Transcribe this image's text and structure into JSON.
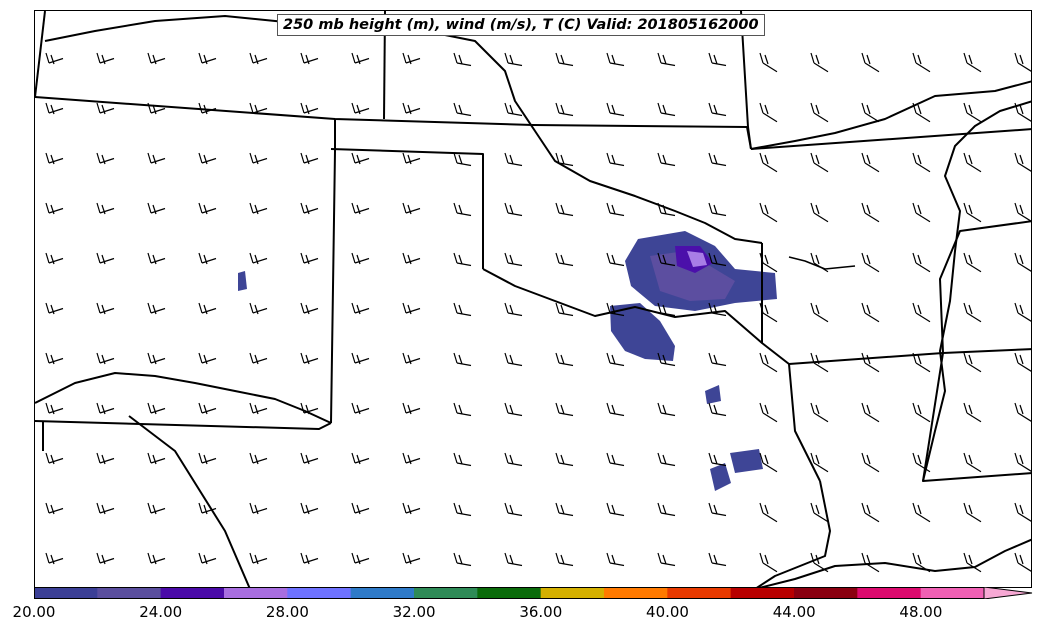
{
  "title": "250 mb height (m), wind (m/s), T (C) Valid: 201805162000",
  "colorbar": {
    "colors": [
      "#3b3f96",
      "#5a4e9e",
      "#4a0aa8",
      "#a86ee0",
      "#6e72ff",
      "#2e7ac8",
      "#2e8b57",
      "#0a6b0a",
      "#d4b000",
      "#ff7a00",
      "#e83a00",
      "#b80000",
      "#8a0010",
      "#dc0a6e",
      "#f060b4"
    ],
    "extend_color": "#f7a8d4",
    "tick_labels": [
      "20.00",
      "24.00",
      "28.00",
      "32.00",
      "36.00",
      "40.00",
      "44.00",
      "48.00"
    ]
  },
  "colors": {
    "boundary": "#000000",
    "shade_light": "#3e4596",
    "shade_mid": "#5c4ea0",
    "shade_dark": "#4b10aa",
    "shade_core": "#a87ee6"
  }
}
